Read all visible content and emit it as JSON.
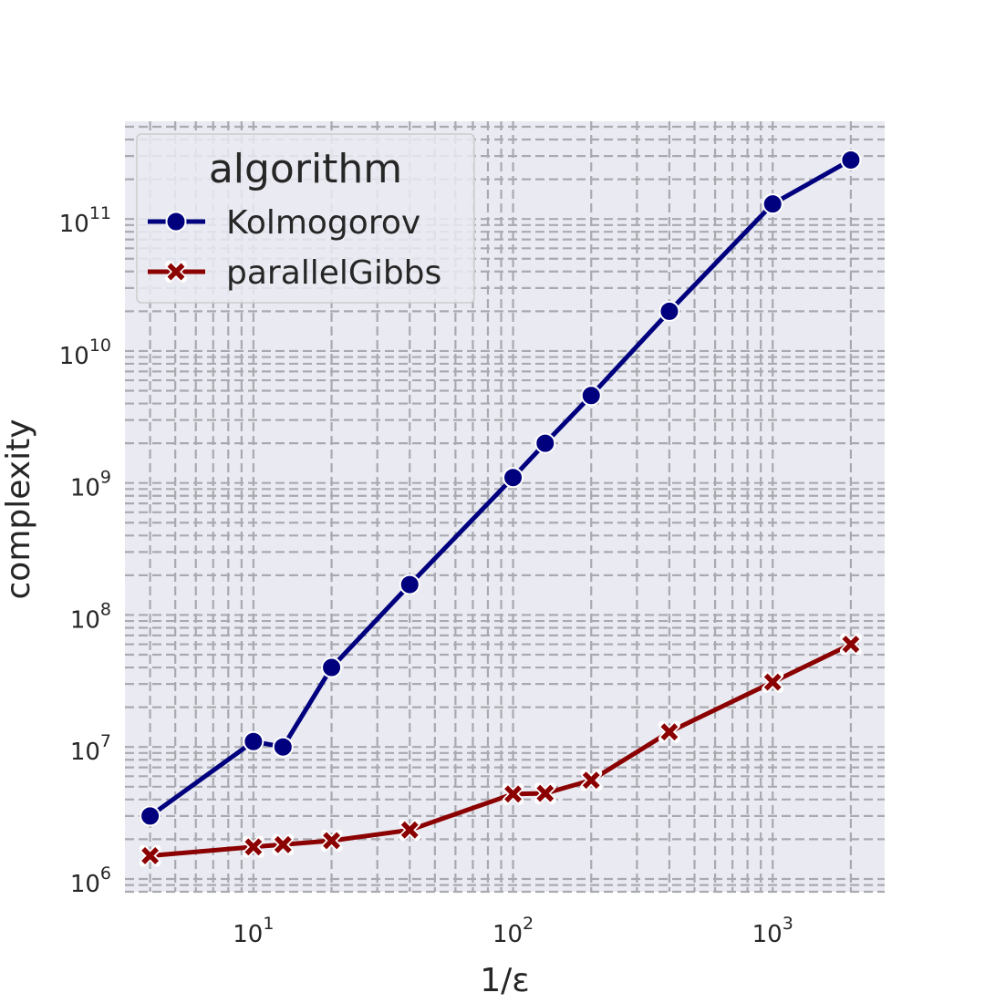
{
  "chart_data": {
    "type": "line",
    "xlabel": "1/ε",
    "ylabel": "complexity",
    "xscale": "log",
    "yscale": "log",
    "xlim": [
      3.2,
      2700
    ],
    "ylim": [
      800000,
      550000000000
    ],
    "grid": true,
    "grid_style": "dashed",
    "background": "#eaeaf2",
    "x_ticks": [
      {
        "value": 10,
        "base": "10",
        "exp": "1"
      },
      {
        "value": 100,
        "base": "10",
        "exp": "2"
      },
      {
        "value": 1000,
        "base": "10",
        "exp": "3"
      }
    ],
    "y_ticks": [
      {
        "value": 1000000,
        "base": "10",
        "exp": "6"
      },
      {
        "value": 10000000,
        "base": "10",
        "exp": "7"
      },
      {
        "value": 100000000,
        "base": "10",
        "exp": "8"
      },
      {
        "value": 1000000000,
        "base": "10",
        "exp": "9"
      },
      {
        "value": 10000000000,
        "base": "10",
        "exp": "10"
      },
      {
        "value": 100000000000,
        "base": "10",
        "exp": "11"
      }
    ],
    "legend": {
      "title": "algorithm",
      "position": "top-left"
    },
    "series": [
      {
        "name": "Kolmogorov",
        "color": "#00007f",
        "marker": "circle",
        "x": [
          4,
          10,
          13,
          20,
          40,
          100,
          133,
          200,
          400,
          1000,
          2000
        ],
        "y": [
          3000000,
          11000000,
          10000000,
          40000000,
          170000000,
          1100000000,
          2000000000,
          4600000000,
          20000000000,
          130000000000,
          280000000000
        ]
      },
      {
        "name": "parallelGibbs",
        "color": "#8b0000",
        "marker": "x",
        "x": [
          4,
          10,
          13,
          20,
          40,
          100,
          133,
          200,
          400,
          1000,
          2000
        ],
        "y": [
          1500000,
          1750000,
          1820000,
          1950000,
          2350000,
          4400000,
          4450000,
          5600000,
          13000000,
          31000000,
          60000000
        ]
      }
    ]
  }
}
